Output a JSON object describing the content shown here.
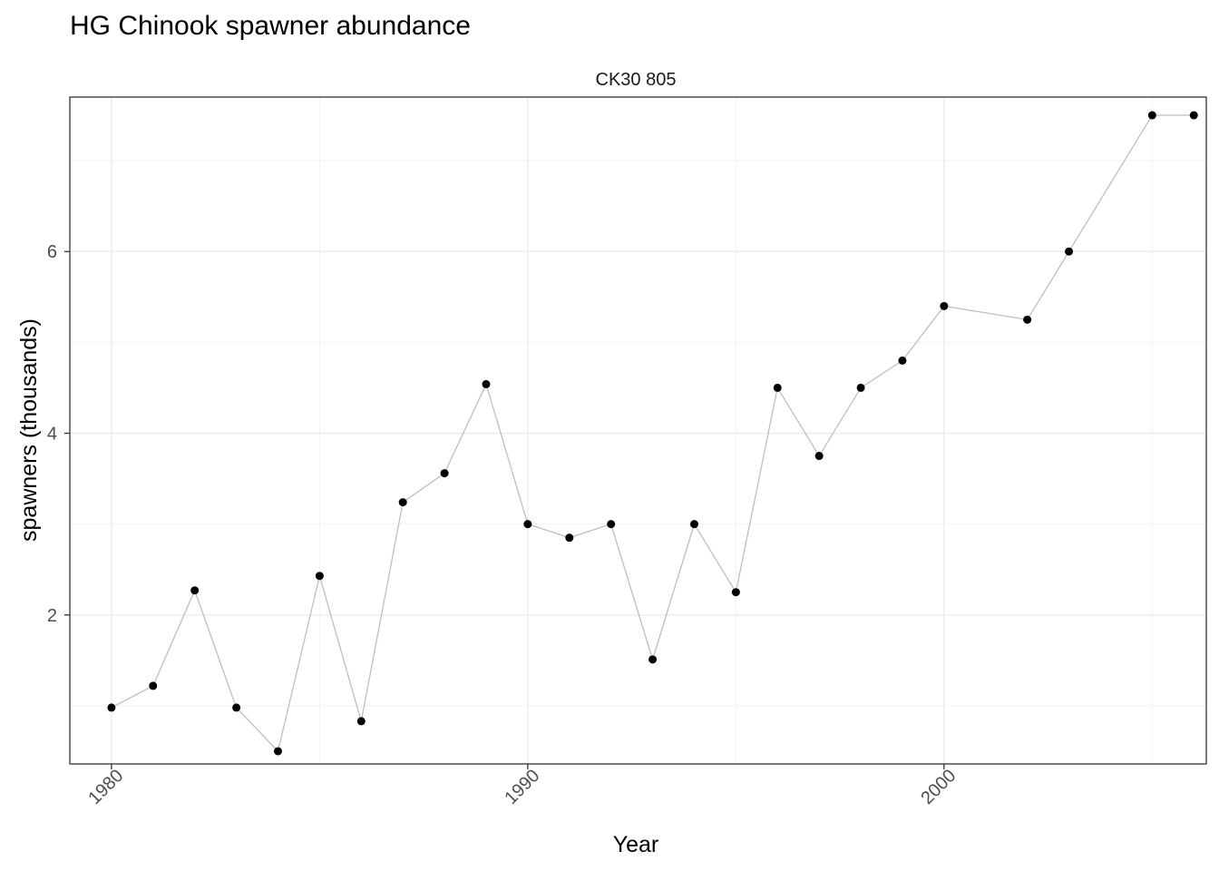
{
  "title": "HG Chinook spawner abundance",
  "chart_data": {
    "type": "line",
    "title": "HG Chinook spawner abundance",
    "facet_label": "CK30 805",
    "xlabel": "Year",
    "ylabel": "spawners (thousands)",
    "xlim": [
      1979.0,
      2006.3
    ],
    "ylim": [
      0.36,
      7.7
    ],
    "x_ticks": [
      1980,
      1990,
      2000
    ],
    "y_ticks": [
      2,
      4,
      6
    ],
    "x_minor_ticks": [
      1985,
      1995,
      2005
    ],
    "y_minor_ticks": [
      1,
      3,
      5,
      7
    ],
    "grid": true,
    "legend": "none",
    "line_color": "#bebebe",
    "point_color": "#000000",
    "series": [
      {
        "x": [
          1980,
          1981,
          1982,
          1983,
          1984,
          1985,
          1986,
          1987,
          1988,
          1989,
          1990,
          1991,
          1992,
          1993,
          1994,
          1995,
          1996,
          1997,
          1998,
          1999,
          2000,
          2002,
          2003,
          2005,
          2006
        ],
        "values": [
          0.98,
          1.22,
          2.27,
          0.98,
          0.5,
          2.43,
          0.83,
          3.24,
          3.56,
          4.54,
          3.0,
          2.85,
          3.0,
          1.51,
          3.0,
          2.25,
          4.5,
          3.75,
          4.5,
          4.8,
          5.4,
          5.25,
          6.0,
          7.5,
          7.5
        ]
      }
    ]
  }
}
